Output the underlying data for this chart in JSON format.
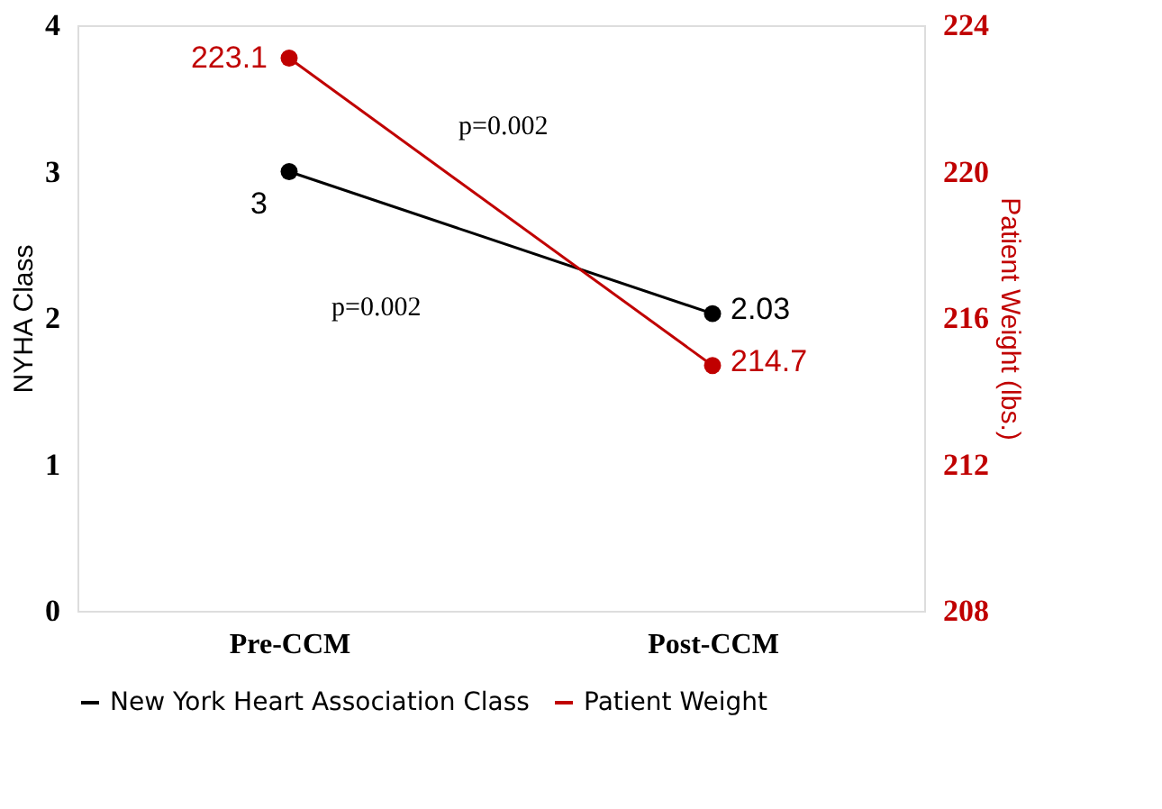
{
  "chart_data": {
    "type": "line",
    "categories": [
      "Pre-CCM",
      "Post-CCM"
    ],
    "ylabel": "NYHA Class",
    "y2label": "Patient Weight (lbs.)",
    "ylim": [
      0,
      4
    ],
    "yticks": [
      0,
      1,
      2,
      3,
      4
    ],
    "y2lim": [
      208,
      224
    ],
    "y2ticks": [
      208,
      212,
      216,
      220,
      224
    ],
    "series": [
      {
        "name": "New York Heart Association Class",
        "color": "#000000",
        "values": [
          3,
          2.03
        ]
      },
      {
        "name": "Patient Weight",
        "color": "#c00000",
        "values": [
          223.1,
          214.7
        ],
        "axis": "y2"
      }
    ],
    "annotations": [
      "p=0.002",
      "p=0.002"
    ],
    "data_labels": true,
    "marker": "circle",
    "line_style": "solid",
    "grid": false,
    "legend": "bottom"
  }
}
